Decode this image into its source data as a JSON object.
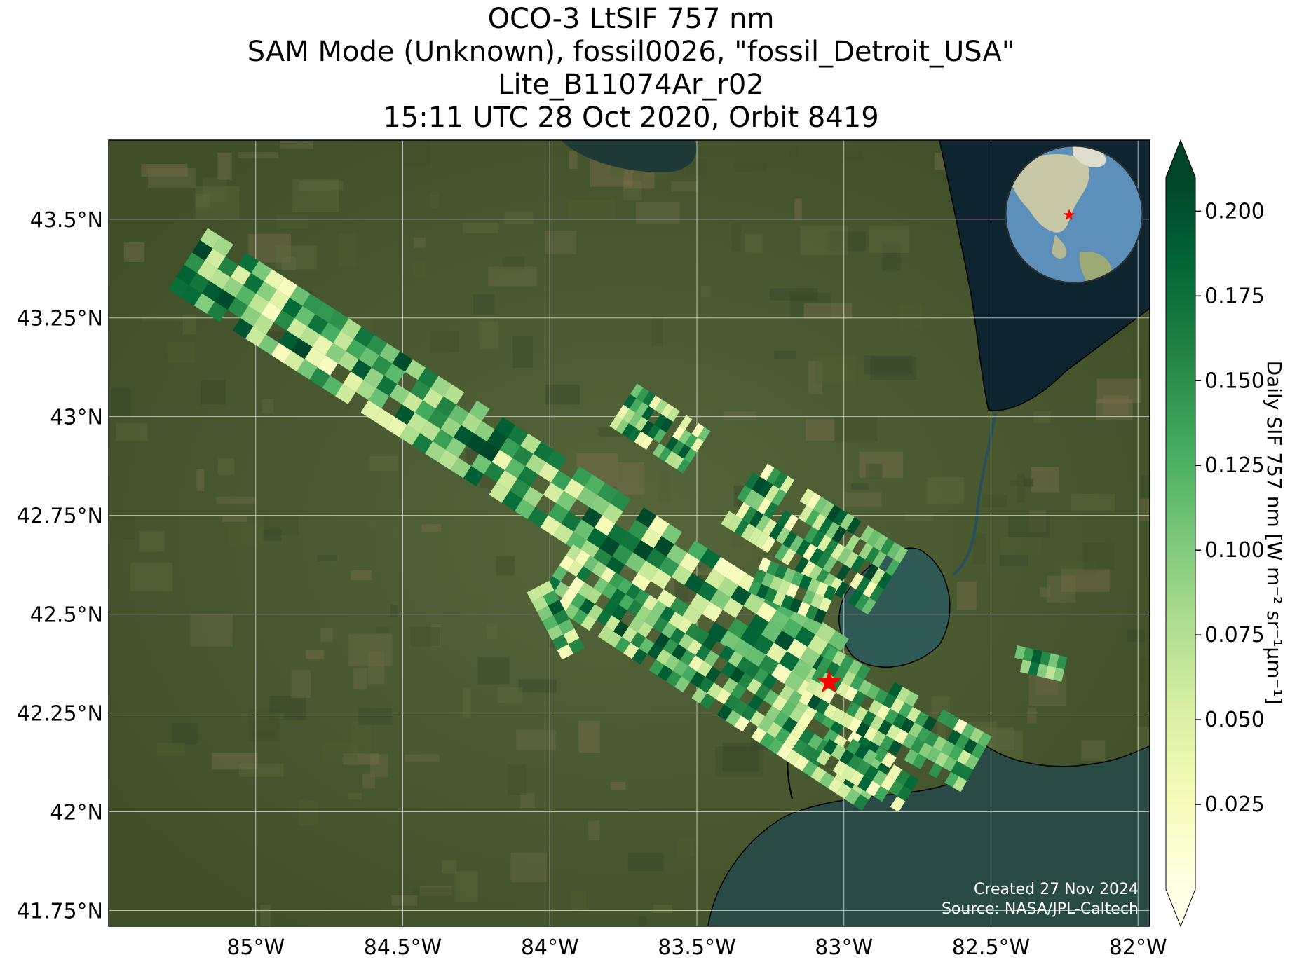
{
  "title": {
    "line1": "OCO-3 LtSIF 757 nm",
    "line2": "SAM Mode (Unknown), fossil0026, \"fossil_Detroit_USA\"",
    "line3": "Lite_B11074Ar_r02",
    "line4": "15:11 UTC 28 Oct 2020, Orbit 8419"
  },
  "map": {
    "lon_range": [
      -85.5,
      -81.96
    ],
    "lat_range": [
      41.71,
      43.7
    ],
    "lon_ticks": [
      {
        "value": -85.0,
        "label": "85°W"
      },
      {
        "value": -84.5,
        "label": "84.5°W"
      },
      {
        "value": -84.0,
        "label": "84°W"
      },
      {
        "value": -83.5,
        "label": "83.5°W"
      },
      {
        "value": -83.0,
        "label": "83°W"
      },
      {
        "value": -82.5,
        "label": "82.5°W"
      },
      {
        "value": -82.0,
        "label": "82°W"
      }
    ],
    "lat_ticks": [
      {
        "value": 43.5,
        "label": "43.5°N"
      },
      {
        "value": 43.25,
        "label": "43.25°N"
      },
      {
        "value": 43.0,
        "label": "43°N"
      },
      {
        "value": 42.75,
        "label": "42.75°N"
      },
      {
        "value": 42.5,
        "label": "42.5°N"
      },
      {
        "value": 42.25,
        "label": "42.25°N"
      },
      {
        "value": 42.0,
        "label": "42°N"
      },
      {
        "value": 41.75,
        "label": "41.75°N"
      }
    ],
    "target": {
      "name": "fossil_Detroit_USA",
      "lon": -83.05,
      "lat": 42.33,
      "marker_color": "#ff0000"
    },
    "land_color": "#4a5a2e",
    "water_color": "#203a3a",
    "gridlines": true,
    "inset_globe": {
      "position": "top-right",
      "marker_color": "#ff0000"
    }
  },
  "swaths": [
    {
      "start_lon": -85.23,
      "start_lat": 43.4,
      "end_lon": -83.05,
      "end_lat": 42.36,
      "width_deg": 0.115,
      "along_cells": 50,
      "across_cells": 5
    },
    {
      "start_lon": -83.98,
      "start_lat": 42.61,
      "end_lon": -82.88,
      "end_lat": 42.07,
      "width_deg": 0.1,
      "along_cells": 38,
      "across_cells": 5
    },
    {
      "start_lon": -83.1,
      "start_lat": 42.35,
      "end_lon": -82.55,
      "end_lat": 42.12,
      "width_deg": 0.1,
      "along_cells": 20,
      "across_cells": 5
    },
    {
      "start_lon": -83.06,
      "start_lat": 42.17,
      "end_lon": -82.78,
      "end_lat": 42.04,
      "width_deg": 0.06,
      "along_cells": 10,
      "across_cells": 3
    },
    {
      "start_lon": -84.04,
      "start_lat": 42.57,
      "end_lon": -83.92,
      "end_lat": 42.4,
      "width_deg": 0.04,
      "along_cells": 7,
      "across_cells": 2
    },
    {
      "start_lon": -83.75,
      "start_lat": 43.03,
      "end_lon": -83.5,
      "end_lat": 42.91,
      "width_deg": 0.08,
      "along_cells": 12,
      "across_cells": 4
    },
    {
      "start_lon": -83.35,
      "start_lat": 42.81,
      "end_lon": -82.85,
      "end_lat": 42.58,
      "width_deg": 0.12,
      "along_cells": 22,
      "across_cells": 5
    },
    {
      "start_lon": -83.3,
      "start_lat": 42.6,
      "end_lon": -83.05,
      "end_lat": 42.52,
      "width_deg": 0.06,
      "along_cells": 9,
      "across_cells": 3
    },
    {
      "start_lon": -82.42,
      "start_lat": 42.39,
      "end_lon": -82.25,
      "end_lat": 42.36,
      "width_deg": 0.04,
      "along_cells": 6,
      "across_cells": 2
    }
  ],
  "colorbar": {
    "label": "Daily SIF 757 nm [W m⁻² sr⁻¹µm⁻¹]",
    "min": 0.0,
    "max": 0.21,
    "extend": "both",
    "colormap": "YlGn",
    "ticks": [
      {
        "value": 0.025,
        "label": "0.025"
      },
      {
        "value": 0.05,
        "label": "0.050"
      },
      {
        "value": 0.075,
        "label": "0.075"
      },
      {
        "value": 0.1,
        "label": "0.100"
      },
      {
        "value": 0.125,
        "label": "0.125"
      },
      {
        "value": 0.15,
        "label": "0.150"
      },
      {
        "value": 0.175,
        "label": "0.175"
      },
      {
        "value": 0.2,
        "label": "0.200"
      }
    ],
    "colors": [
      "#ffffe5",
      "#f7fcb9",
      "#d9f0a3",
      "#addd8e",
      "#78c679",
      "#41ab5d",
      "#238443",
      "#006837",
      "#004529"
    ]
  },
  "credits": {
    "created": "Created 27 Nov 2024",
    "source": "Source: NASA/JPL-Caltech"
  }
}
